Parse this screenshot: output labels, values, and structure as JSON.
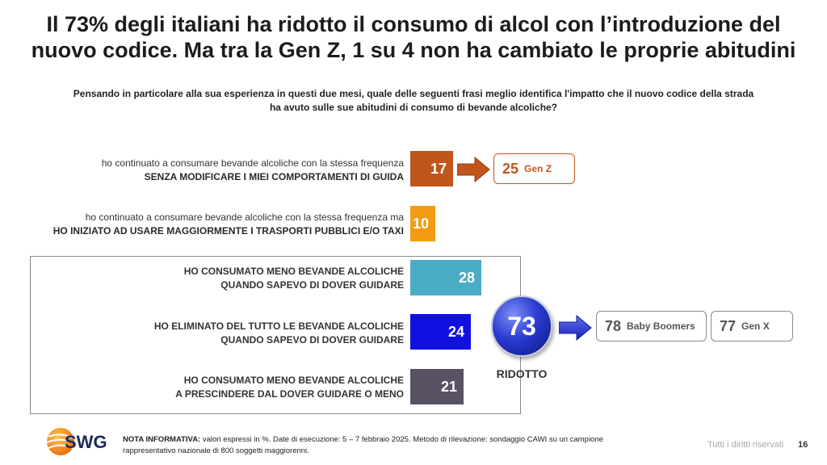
{
  "title": {
    "line1": "Il 73% degli italiani ha ridotto il consumo di alcol con l’introduzione del",
    "line2": "nuovo codice. Ma tra la Gen Z, 1 su 4 non ha cambiato le proprie abitudini"
  },
  "question": {
    "line1": "Pensando in particolare alla sua esperienza in questi due mesi, quale delle seguenti frasi meglio identifica l'impatto che il nuovo codice della strada",
    "line2": "ha avuto sulle sue abitudini di consumo di bevande alcoliche?"
  },
  "chart_data": {
    "type": "bar",
    "orientation": "horizontal",
    "unit": "%",
    "categories": [
      {
        "line1": "ho continuato a consumare bevande alcoliche con la stessa frequenza",
        "line2": "SENZA MODIFICARE I MIEI COMPORTAMENTI DI GUIDA"
      },
      {
        "line1": "ho continuato a consumare bevande alcoliche con la stessa frequenza ma",
        "line2": "HO INIZIATO AD USARE MAGGIORMENTE I TRASPORTI PUBBLICI E/O TAXI"
      },
      {
        "line1": "HO CONSUMATO MENO BEVANDE ALCOLICHE",
        "line2": "QUANDO SAPEVO DI DOVER GUIDARE"
      },
      {
        "line1": "HO ELIMINATO DEL TUTTO LE BEVANDE ALCOLICHE",
        "line2": "QUANDO SAPEVO DI DOVER GUIDARE"
      },
      {
        "line1": "HO CONSUMATO MENO BEVANDE ALCOLICHE",
        "line2": "A PRESCINDERE DAL DOVER GUIDARE O MENO"
      }
    ],
    "values": [
      17,
      10,
      28,
      24,
      21
    ],
    "labels": [
      "17",
      "10",
      "28",
      "24",
      "21"
    ],
    "colors": [
      "#c0561c",
      "#f39c12",
      "#4bacc6",
      "#1010e0",
      "#595264"
    ],
    "max_value": 30,
    "callouts": {
      "gen_z": {
        "value": "25",
        "label": "Gen Z",
        "color": "#c0561c"
      },
      "ridotto": {
        "value": "73",
        "label": "RIDOTTO"
      },
      "boomers": {
        "value": "78",
        "label": "Baby Boomers"
      },
      "gen_x": {
        "value": "77",
        "label": "Gen X"
      }
    }
  },
  "footer": {
    "logo": "SWG",
    "note_bold": "NOTA INFORMATIVA:",
    "note_text": " valori espressi in %. Date di esecuzione: 5 – 7 febbraio 2025. Metodo di rilevazione: sondaggio CAWI su un campione rappresentativo nazionale di 800 soggetti maggiorenni.",
    "rights": "Tutti i diritti riservati",
    "page": "16"
  }
}
